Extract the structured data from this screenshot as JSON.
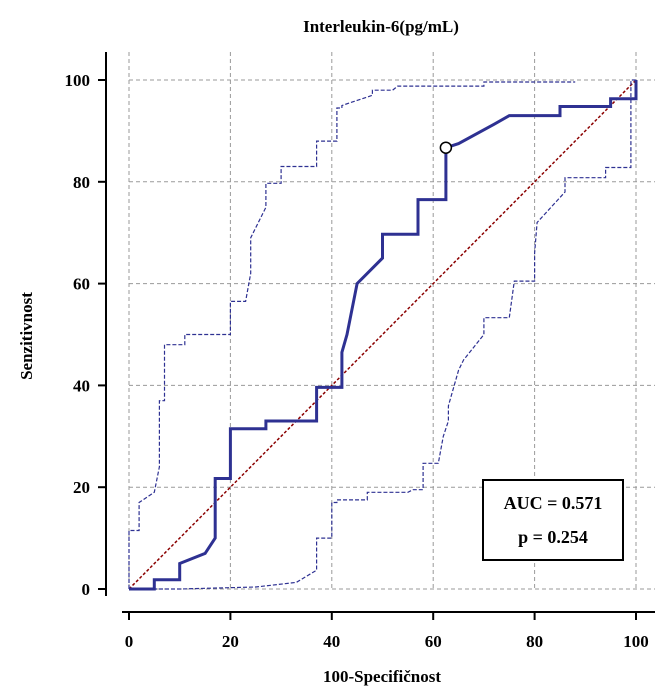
{
  "chart_data": {
    "type": "line",
    "title": "Interleukin-6(pg/mL)",
    "xlabel": "100-Specifičnost",
    "ylabel": "Senzitivnost",
    "xlim": [
      0,
      100
    ],
    "ylim": [
      0,
      100
    ],
    "xticks": [
      0,
      20,
      40,
      60,
      80,
      100
    ],
    "yticks": [
      0,
      20,
      40,
      60,
      80,
      100
    ],
    "grid": true,
    "colors": {
      "roc": "#2e3192",
      "ci": "#2e3192",
      "reference": "#8b0000",
      "grid": "#9a9a9a"
    },
    "series": [
      {
        "role": "roc",
        "x": [
          0,
          5,
          5,
          10,
          10,
          15,
          17,
          17,
          20,
          20,
          27,
          27,
          37,
          37,
          42,
          42,
          43,
          45,
          45,
          50,
          50,
          57,
          57,
          62.5,
          62.5,
          65,
          72,
          72,
          75,
          75,
          85,
          85,
          95,
          95,
          100,
          100
        ],
        "y": [
          0,
          0,
          1.8,
          1.8,
          5,
          7,
          10,
          21.7,
          21.7,
          31.5,
          31.5,
          33,
          33,
          39.6,
          39.6,
          46.5,
          50,
          60,
          60,
          65,
          69.7,
          69.7,
          76.5,
          76.5,
          86.7,
          87.5,
          91.3,
          91.3,
          93,
          93,
          93,
          94.8,
          94.8,
          96.3,
          96.3,
          100
        ]
      },
      {
        "role": "ci-upper",
        "x": [
          0,
          0,
          2,
          2,
          5,
          6,
          6,
          7,
          7,
          11,
          11,
          15,
          15,
          20,
          20,
          23,
          24,
          24,
          27,
          27,
          30,
          30,
          37,
          37,
          41,
          41,
          42,
          42,
          48,
          48,
          52,
          53,
          58,
          58,
          70,
          70,
          88
        ],
        "y": [
          0,
          11.5,
          11.5,
          17,
          19,
          24,
          37,
          37,
          48,
          48,
          50,
          50,
          50,
          50,
          56.5,
          56.5,
          62,
          69,
          75,
          79.7,
          79.7,
          83,
          83,
          88,
          88,
          94.5,
          94.5,
          95,
          97,
          98,
          98,
          98.8,
          98.8,
          98.8,
          98.8,
          99.6,
          99.6
        ]
      },
      {
        "role": "ci-lower",
        "x": [
          0,
          5,
          7,
          10,
          25,
          33,
          37,
          37,
          40,
          40,
          41,
          41,
          47,
          47,
          55,
          56,
          58,
          58,
          61,
          62,
          63,
          63,
          65,
          66,
          70,
          70,
          75,
          76,
          80,
          80,
          80.5,
          86,
          86,
          94,
          94,
          99,
          99,
          100
        ],
        "y": [
          0,
          0,
          0,
          0,
          0.4,
          1.3,
          3.7,
          10,
          10,
          17,
          17,
          17.5,
          17.5,
          19,
          19,
          19.5,
          19.5,
          24.7,
          24.7,
          30,
          33,
          36,
          43,
          45,
          50,
          53.3,
          53.3,
          60.5,
          60.5,
          66,
          72,
          78,
          80.8,
          80.8,
          82.8,
          82.8,
          100,
          100
        ]
      }
    ],
    "reference_line": {
      "x": [
        0,
        100
      ],
      "y": [
        0,
        100
      ]
    },
    "marker": {
      "x": 62.5,
      "y": 86.7
    },
    "legend": {
      "position": "bottom-right",
      "lines": [
        "AUC = 0.571",
        "p = 0.254"
      ]
    }
  }
}
